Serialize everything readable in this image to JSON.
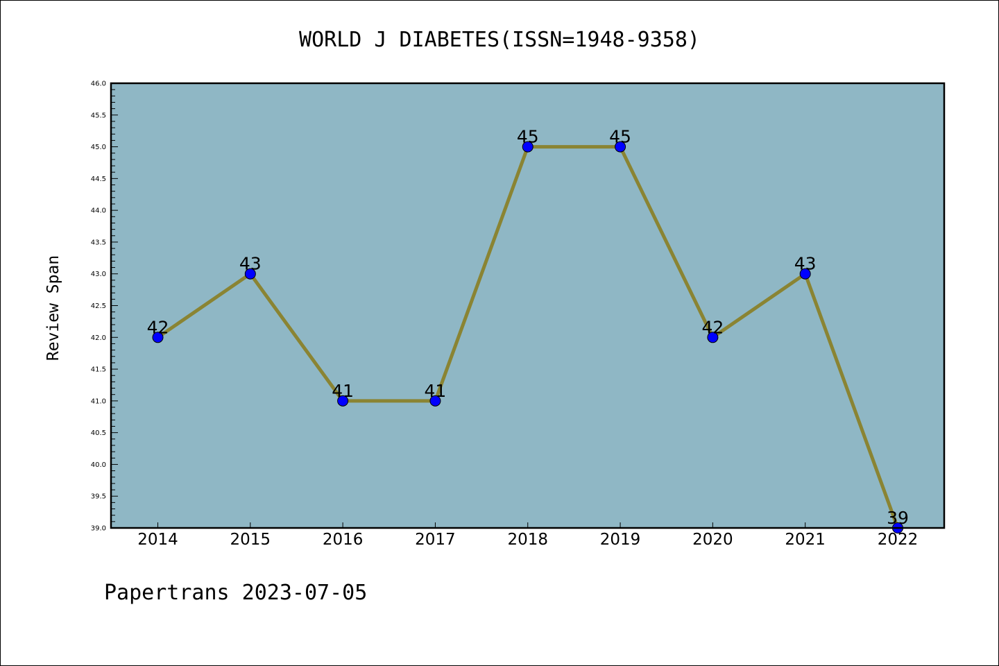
{
  "chart_data": {
    "type": "line",
    "title": "WORLD J DIABETES(ISSN=1948-9358)",
    "xlabel": "",
    "ylabel": "Review Span",
    "categories": [
      "2014",
      "2015",
      "2016",
      "2017",
      "2018",
      "2019",
      "2020",
      "2021",
      "2022"
    ],
    "series": [
      {
        "values": [
          42,
          43,
          41,
          41,
          45,
          45,
          42,
          43,
          39
        ]
      }
    ],
    "ylim": [
      39.0,
      46.0
    ],
    "y_major_ticks": [
      "39.0",
      "39.5",
      "40.0",
      "40.5",
      "41.0",
      "41.5",
      "42.0",
      "42.5",
      "43.0",
      "43.5",
      "44.0",
      "44.5",
      "45.0",
      "45.5",
      "46.0"
    ],
    "y_minor_step": 0.1,
    "grid": false,
    "data_labels": [
      "42",
      "43",
      "41",
      "41",
      "45",
      "45",
      "42",
      "43",
      "39"
    ],
    "colors": {
      "plot_background": "#8fb7c5",
      "line": "#8a8433",
      "marker": "#0000ff",
      "axis": "#000000"
    }
  },
  "footer": "Papertrans 2023-07-05"
}
